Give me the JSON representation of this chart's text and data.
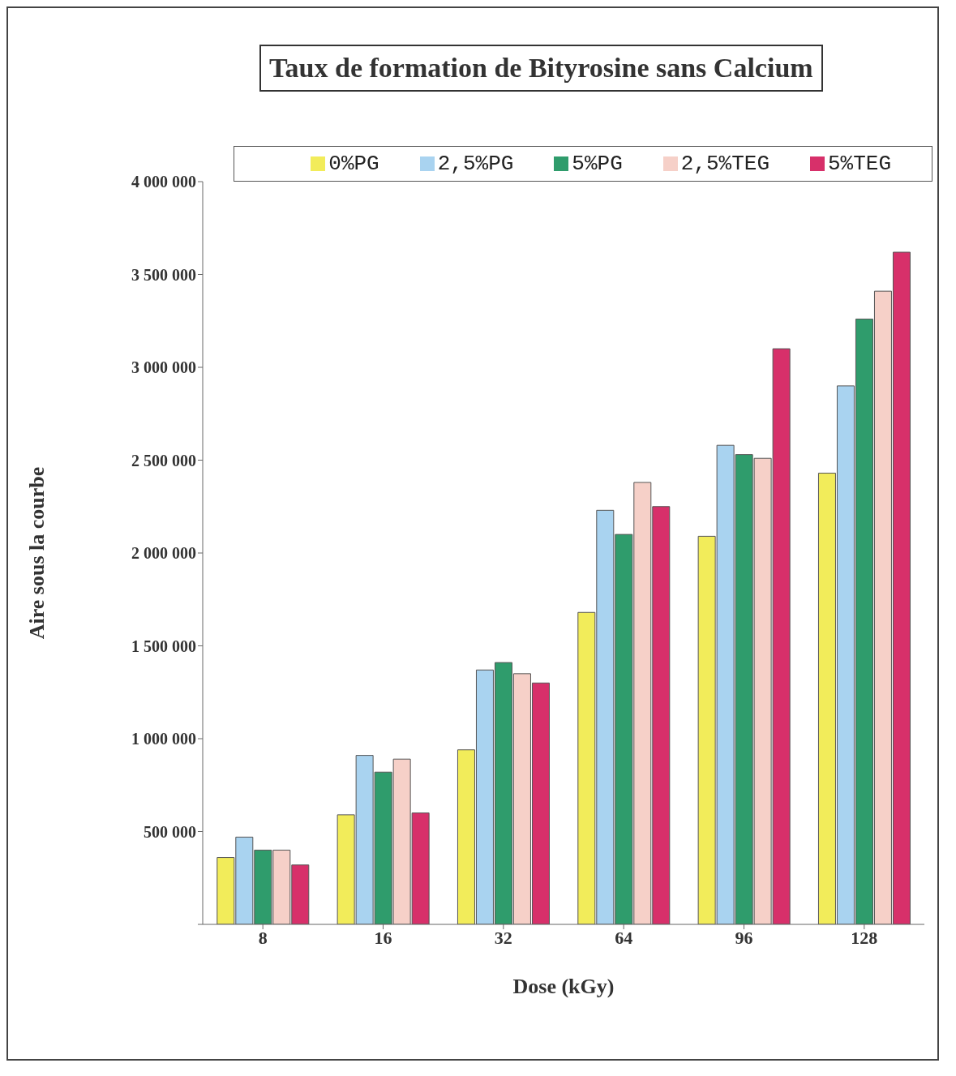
{
  "chart_data": {
    "type": "bar",
    "title": "Taux de formation de Bityrosine sans Calcium",
    "xlabel": "Dose (kGy)",
    "ylabel": "Aire sous la courbe",
    "categories": [
      "8",
      "16",
      "32",
      "64",
      "96",
      "128"
    ],
    "series": [
      {
        "name": "0%PG",
        "color": "#f2ec5a",
        "values": [
          360000,
          590000,
          940000,
          1680000,
          2090000,
          2430000
        ]
      },
      {
        "name": "2,5%PG",
        "color": "#a9d3f0",
        "values": [
          470000,
          910000,
          1370000,
          2230000,
          2580000,
          2900000
        ]
      },
      {
        "name": "5%PG",
        "color": "#2f9c6c",
        "values": [
          400000,
          820000,
          1410000,
          2100000,
          2530000,
          3260000
        ]
      },
      {
        "name": "2,5%TEG",
        "color": "#f6d0c8",
        "values": [
          400000,
          890000,
          1350000,
          2380000,
          2510000,
          3410000
        ]
      },
      {
        "name": "5%TEG",
        "color": "#d7306a",
        "values": [
          320000,
          600000,
          1300000,
          2250000,
          3100000,
          3620000
        ]
      }
    ],
    "ylim": [
      0,
      4000000
    ],
    "yticks": [
      {
        "value": 0,
        "label": null
      },
      {
        "value": 500000,
        "label": "500 000"
      },
      {
        "value": 1000000,
        "label": "1 000 000"
      },
      {
        "value": 1500000,
        "label": "1 500 000"
      },
      {
        "value": 2000000,
        "label": "2 000 000"
      },
      {
        "value": 2500000,
        "label": "2 500 000"
      },
      {
        "value": 3000000,
        "label": "3 000 000"
      },
      {
        "value": 3500000,
        "label": "3 500 000"
      },
      {
        "value": 4000000,
        "label": "4 000 000"
      }
    ],
    "legend": "top"
  }
}
